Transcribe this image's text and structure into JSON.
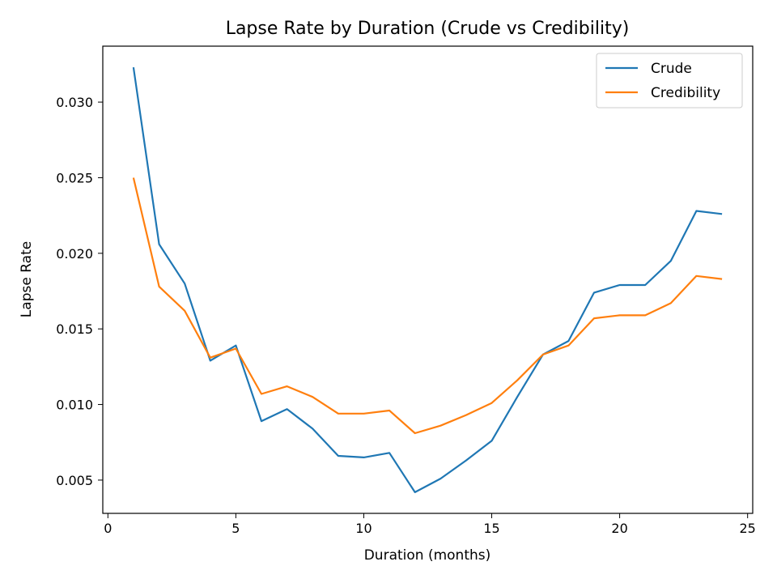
{
  "chart_data": {
    "type": "line",
    "title": "Lapse Rate by Duration (Crude vs Credibility)",
    "xlabel": "Duration (months)",
    "ylabel": "Lapse Rate",
    "xlim": [
      -0.2,
      25.2
    ],
    "ylim": [
      0.0028,
      0.0337
    ],
    "xticks": [
      0,
      5,
      10,
      15,
      20,
      25
    ],
    "xtick_labels": [
      "0",
      "5",
      "10",
      "15",
      "20",
      "25"
    ],
    "yticks": [
      0.005,
      0.01,
      0.015,
      0.02,
      0.025,
      0.03
    ],
    "ytick_labels": [
      "0.005",
      "0.010",
      "0.015",
      "0.020",
      "0.025",
      "0.030"
    ],
    "grid": false,
    "legend_position": "upper right",
    "x": [
      1,
      2,
      3,
      4,
      5,
      6,
      7,
      8,
      9,
      10,
      11,
      12,
      13,
      14,
      15,
      16,
      17,
      18,
      19,
      20,
      21,
      22,
      23,
      24
    ],
    "series": [
      {
        "name": "Crude",
        "color": "#1f77b4",
        "values": [
          0.0323,
          0.0206,
          0.018,
          0.0129,
          0.0139,
          0.0089,
          0.0097,
          0.0084,
          0.0066,
          0.0065,
          0.0068,
          0.0042,
          0.0051,
          0.0063,
          0.0076,
          0.0105,
          0.0133,
          0.0142,
          0.0174,
          0.0179,
          0.0179,
          0.0195,
          0.0228,
          0.0226
        ]
      },
      {
        "name": "Credibility",
        "color": "#ff7f0e",
        "values": [
          0.025,
          0.0178,
          0.0162,
          0.0131,
          0.0137,
          0.0107,
          0.0112,
          0.0105,
          0.0094,
          0.0094,
          0.0096,
          0.0081,
          0.0086,
          0.0093,
          0.0101,
          0.0116,
          0.0133,
          0.0139,
          0.0157,
          0.0159,
          0.0159,
          0.0167,
          0.0185,
          0.0183
        ]
      }
    ]
  }
}
